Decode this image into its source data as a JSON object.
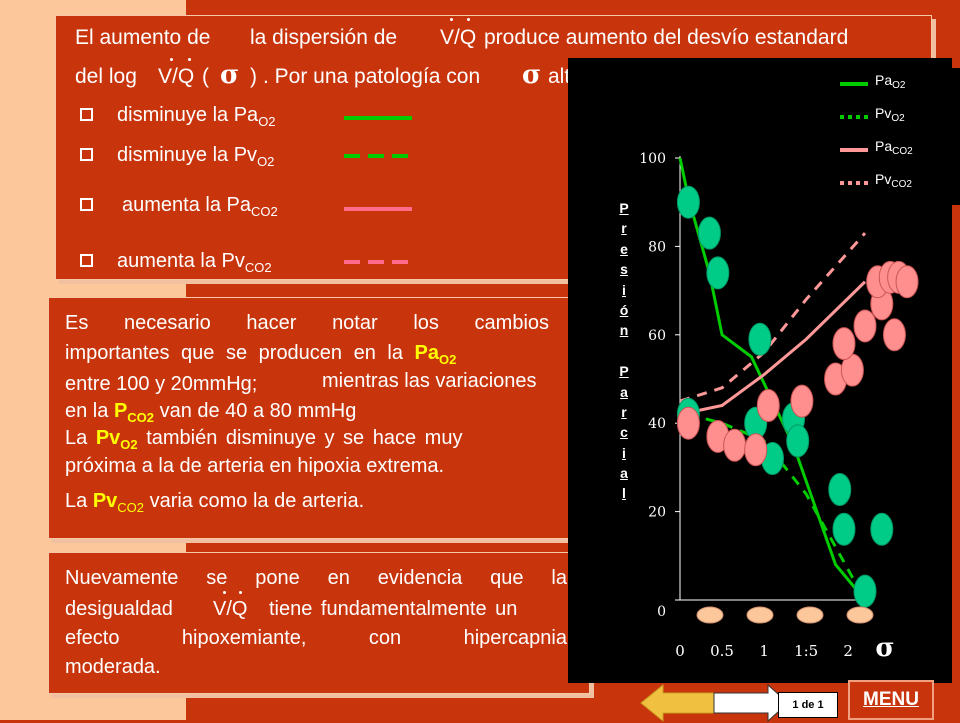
{
  "panel1": {
    "line1": {
      "a": "El aumento de",
      "b": "la dispersión de",
      "vq": "V/Q",
      "c": "produce aumento del desvío estandard"
    },
    "line2": {
      "a": "del log",
      "vq": "V/Q",
      "paren_open": "(",
      "sigma": "σ",
      "paren_close": ")",
      "b": ". Por una patología con",
      "sigma2": "σ",
      "c": "alta",
      "colon": ":"
    },
    "items": [
      {
        "text": "disminuye la Pa",
        "sub": "O2",
        "line_color": "#00cc00",
        "line_style": "solid"
      },
      {
        "text": "disminuye la Pv",
        "sub": "O2",
        "line_color": "#00cc00",
        "line_style": "dashed"
      },
      {
        "text": "aumenta la Pa",
        "sub": "CO2",
        "line_color": "#ff6b8a",
        "line_style": "solid"
      },
      {
        "text": "aumenta la Pv",
        "sub": "CO2",
        "line_color": "#ff6b8a",
        "line_style": "dashed"
      }
    ]
  },
  "panel2": {
    "p1_words": [
      "Es",
      "necesario",
      "hacer",
      "notar",
      "los",
      "cambios"
    ],
    "p2_a": "importantes que se producen en la",
    "p2_pa": "Pa",
    "p2_pa_sub": "O2",
    "p3_a": "entre 100 y 20mmHg;",
    "p3_b": "mientras las variaciones",
    "p4_a": "en la",
    "p4_p": "P",
    "p4_p_sub": "CO2",
    "p4_b": "van de 40 a 80 mmHg",
    "p5_a": "La",
    "p5_pv": "Pv",
    "p5_pv_sub": "O2",
    "p5_b": "también disminuye y se hace muy",
    "p6": "próxima a la de arteria en hipoxia extrema.",
    "p7_a": "La",
    "p7_pv": "Pv",
    "p7_pv_sub": "CO2",
    "p7_b": "varia como la de arteria."
  },
  "panel3": {
    "l1": [
      "Nuevamente",
      "se",
      "pone",
      "en",
      "evidencia",
      "que",
      "la"
    ],
    "l2_a": "desigualdad",
    "l2_vq": "V/Q",
    "l2_b": "tiene fundamentalmente un",
    "l3": [
      "efecto",
      "hipoxemiante,",
      "con",
      "hipercapnia"
    ],
    "l4": "moderada."
  },
  "legend": [
    {
      "label": "Pa",
      "sub": "O2",
      "color": "#00cc00",
      "style": "solid"
    },
    {
      "label": "Pv",
      "sub": "O2",
      "color": "#00cc00",
      "style": "dotted"
    },
    {
      "label": "Pa",
      "sub": "CO2",
      "color": "#ff9999",
      "style": "solid"
    },
    {
      "label": "Pv",
      "sub": "CO2",
      "color": "#ff9999",
      "style": "dotted"
    }
  ],
  "chart_data": {
    "type": "line",
    "ylabel": "Presión Parcial",
    "xlabel_symbol": "σ",
    "x_ticks": [
      "0",
      "0.5",
      "1",
      "1:5",
      "2"
    ],
    "x_tick_values": [
      0,
      0.5,
      1,
      1.5,
      2
    ],
    "y_ticks": [
      "0",
      "20",
      "40",
      "60",
      "80",
      "100"
    ],
    "ylim": [
      0,
      100
    ],
    "xlim": [
      0,
      2.2
    ],
    "series": [
      {
        "name": "PaO2",
        "x": [
          0,
          0.1,
          0.35,
          0.5,
          0.85,
          1.35,
          1.85,
          2.2
        ],
        "y": [
          100,
          91,
          74,
          60,
          55,
          35,
          8,
          0
        ],
        "color": "#00cc00",
        "style": "solid"
      },
      {
        "name": "PvO2",
        "x": [
          0.1,
          0.5,
          1.0,
          1.5,
          2.2
        ],
        "y": [
          42,
          40,
          36,
          24,
          0
        ],
        "color": "#00cc00",
        "style": "dotted"
      },
      {
        "name": "PaCO2",
        "x": [
          0,
          0.5,
          1.0,
          1.5,
          2.2
        ],
        "y": [
          42,
          44,
          51,
          59,
          72
        ],
        "color": "#ff9999",
        "style": "solid"
      },
      {
        "name": "PvCO2",
        "x": [
          0,
          0.5,
          1.0,
          1.5,
          2.2
        ],
        "y": [
          45,
          48,
          56,
          68,
          83
        ],
        "color": "#ff9999",
        "style": "dotted"
      }
    ],
    "markers": {
      "green": [
        [
          0.1,
          90
        ],
        [
          0.35,
          83
        ],
        [
          0.45,
          74
        ],
        [
          0.95,
          59
        ],
        [
          1.35,
          41
        ],
        [
          1.4,
          36
        ],
        [
          1.9,
          25
        ],
        [
          1.95,
          16
        ],
        [
          2.2,
          2
        ],
        [
          2.4,
          16
        ],
        [
          0.1,
          42
        ],
        [
          0.9,
          40
        ],
        [
          1.1,
          32
        ]
      ],
      "pink": [
        [
          0.1,
          40
        ],
        [
          0.45,
          37
        ],
        [
          0.65,
          35
        ],
        [
          0.9,
          34
        ],
        [
          1.05,
          44
        ],
        [
          1.45,
          45
        ],
        [
          1.85,
          50
        ],
        [
          2.05,
          52
        ],
        [
          2.2,
          62
        ],
        [
          2.4,
          67
        ],
        [
          2.35,
          72
        ],
        [
          2.5,
          73
        ],
        [
          2.6,
          73
        ],
        [
          1.95,
          58
        ],
        [
          2.55,
          60
        ],
        [
          2.7,
          72
        ]
      ]
    },
    "bottom_ovals": 4,
    "marker_colors": {
      "green": "#00cc88",
      "pink": "#ff8f8f",
      "oval": "#fcc79a"
    }
  },
  "nav": {
    "page_indicator": "1 de 1",
    "menu": "MENU"
  }
}
